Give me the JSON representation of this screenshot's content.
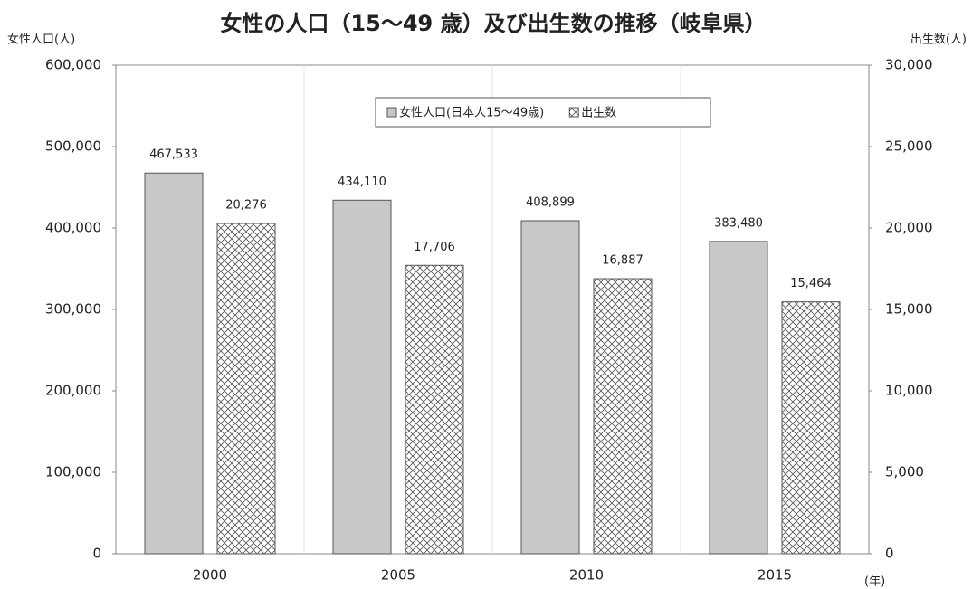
{
  "chart_data": {
    "type": "bar",
    "title": "女性の人口（15～49 歳）及び出生数の推移（岐阜県）",
    "y_label": "女性人口(人)",
    "y2_label": "出生数(人)",
    "x_label": "(年)",
    "categories": [
      "2000",
      "2005",
      "2010",
      "2015"
    ],
    "series": [
      {
        "name": "女性人口(日本人15～49歳)",
        "color": "#c8c8c8",
        "axis": "y",
        "values": [
          467533,
          434110,
          408899,
          383480
        ],
        "value_labels": [
          "467,533",
          "434,110",
          "408,899",
          "383,480"
        ]
      },
      {
        "name": "出生数",
        "color": "#555555",
        "axis": "y2",
        "values": [
          20276,
          17706,
          16887,
          15464
        ],
        "value_labels": [
          "20,276",
          "17,706",
          "16,887",
          "15,464"
        ]
      }
    ],
    "ylim": [
      0,
      600000
    ],
    "yticks": [
      0,
      {
        "value": 100000,
        "label": "100,000"
      },
      {
        "value": 200000,
        "label": "200,000"
      },
      {
        "value": 300000,
        "label": "300,000"
      },
      {
        "value": 400000,
        "label": "400,000"
      },
      {
        "value": 500000,
        "label": "500,000"
      },
      {
        "value": 600000,
        "label": "600,000"
      }
    ],
    "y2lim": [
      0,
      30000
    ],
    "y2ticks": [
      0,
      {
        "value": 5000,
        "label": "5,000"
      },
      {
        "value": 10000,
        "label": "10,000"
      },
      {
        "value": 15000,
        "label": "15,000"
      },
      {
        "value": 20000,
        "label": "20,000"
      },
      {
        "value": 25000,
        "label": "25,000"
      },
      {
        "value": 30000,
        "label": "30,000"
      }
    ],
    "legend": "top"
  }
}
